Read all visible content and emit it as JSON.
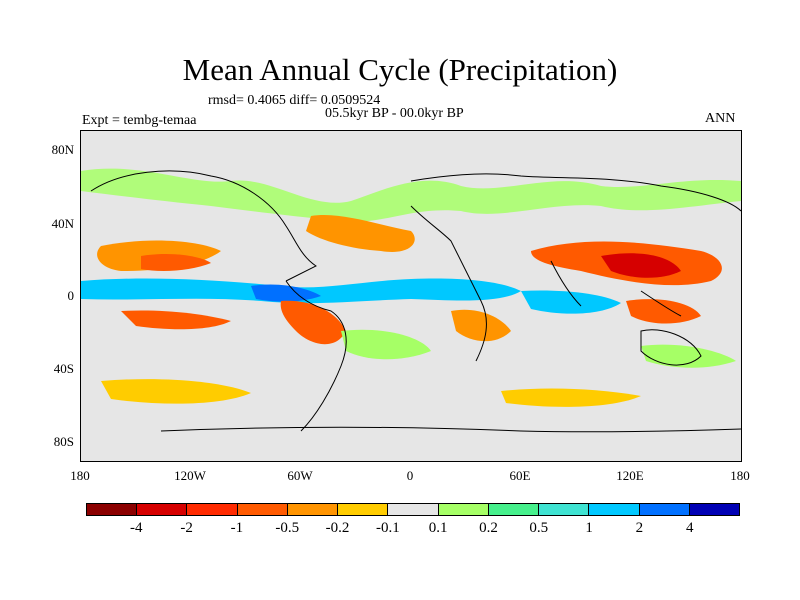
{
  "title": "Mean Annual Cycle (Precipitation)",
  "stats": "rmsd= 0.4065 diff= 0.0509524",
  "experiment": "Expt = tembg-temaa",
  "period": "05.5kyr BP - 00.0kyr BP",
  "season": "ANN",
  "lat_ticks": [
    "80N",
    "40N",
    "0",
    "40S",
    "80S"
  ],
  "lon_ticks": [
    "180",
    "120W",
    "60W",
    "0",
    "60E",
    "120E",
    "180"
  ],
  "colorbar": {
    "colors": [
      "#8b0000",
      "#d60000",
      "#ff2a00",
      "#ff5a00",
      "#ff9400",
      "#ffcc00",
      "#e6e6e6",
      "#a6ff66",
      "#46f08c",
      "#3fe3d2",
      "#00c8ff",
      "#0070ff",
      "#0000b4"
    ],
    "labels": [
      "-4",
      "-2",
      "-1",
      "-0.5",
      "-0.2",
      "-0.1",
      "0.1",
      "0.2",
      "0.5",
      "1",
      "2",
      "4"
    ]
  }
}
